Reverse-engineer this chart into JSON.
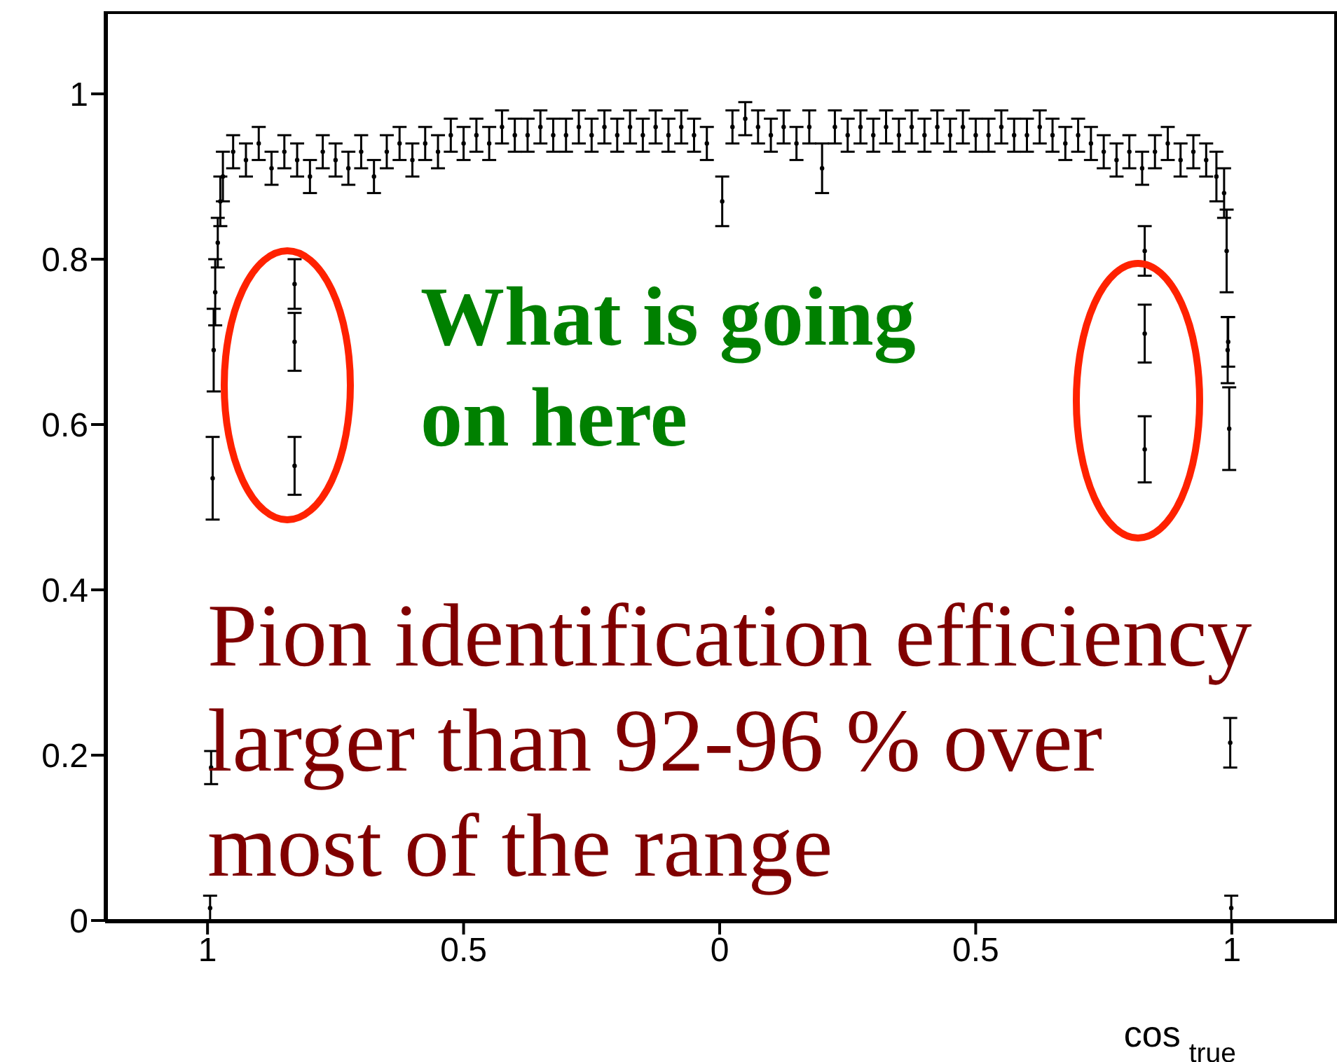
{
  "chart_data": {
    "type": "scatter",
    "xlabel": "cos$_{true}$",
    "xlim": [
      -1.2,
      1.2
    ],
    "ylim": [
      0,
      1.1
    ],
    "xticks": [
      {
        "value": -1,
        "label": "1"
      },
      {
        "value": -0.5,
        "label": "0.5"
      },
      0,
      {
        "value": 0.5,
        "label": "0.5"
      },
      1
    ],
    "yticks": [
      0,
      0.2,
      0.4,
      0.6,
      0.8,
      1
    ],
    "marker": "circle",
    "grid": false,
    "legend": false,
    "annotations": [
      "What is going on here",
      "Pion identification efficiency larger than 92-96 % over most of the range"
    ],
    "series": [
      {
        "color": "#000000",
        "x": [
          -0.995,
          -0.993,
          -0.99,
          -0.988,
          -0.985,
          -0.98,
          -0.975,
          -0.97,
          -0.83,
          -0.83,
          -0.83,
          -0.95,
          -0.925,
          -0.9,
          -0.875,
          -0.85,
          -0.825,
          -0.8,
          -0.775,
          -0.75,
          -0.725,
          -0.7,
          -0.675,
          -0.65,
          -0.625,
          -0.6,
          -0.575,
          -0.55,
          -0.525,
          -0.5,
          -0.475,
          -0.45,
          -0.425,
          -0.4,
          -0.375,
          -0.35,
          -0.325,
          -0.3,
          -0.275,
          -0.25,
          -0.225,
          -0.2,
          -0.175,
          -0.15,
          -0.125,
          -0.1,
          -0.075,
          -0.05,
          -0.025,
          0.005,
          0.025,
          0.05,
          0.075,
          0.1,
          0.125,
          0.15,
          0.175,
          0.2,
          0.225,
          0.25,
          0.275,
          0.3,
          0.325,
          0.35,
          0.375,
          0.4,
          0.425,
          0.45,
          0.475,
          0.5,
          0.525,
          0.55,
          0.575,
          0.6,
          0.625,
          0.65,
          0.675,
          0.7,
          0.725,
          0.75,
          0.775,
          0.8,
          0.825,
          0.85,
          0.875,
          0.9,
          0.925,
          0.95,
          0.97,
          0.83,
          0.83,
          0.83,
          0.985,
          0.99,
          0.992,
          0.993,
          0.995,
          0.997,
          0.999
        ],
        "values": [
          0.015,
          0.185,
          0.535,
          0.69,
          0.76,
          0.82,
          0.87,
          0.9,
          0.77,
          0.7,
          0.55,
          0.93,
          0.92,
          0.94,
          0.91,
          0.93,
          0.92,
          0.9,
          0.93,
          0.92,
          0.91,
          0.93,
          0.9,
          0.93,
          0.94,
          0.92,
          0.94,
          0.93,
          0.95,
          0.94,
          0.95,
          0.94,
          0.96,
          0.95,
          0.95,
          0.96,
          0.95,
          0.95,
          0.96,
          0.95,
          0.96,
          0.95,
          0.96,
          0.95,
          0.96,
          0.95,
          0.96,
          0.95,
          0.94,
          0.87,
          0.96,
          0.97,
          0.96,
          0.95,
          0.96,
          0.94,
          0.96,
          0.91,
          0.96,
          0.95,
          0.96,
          0.95,
          0.96,
          0.95,
          0.96,
          0.95,
          0.96,
          0.95,
          0.96,
          0.95,
          0.95,
          0.96,
          0.95,
          0.95,
          0.96,
          0.95,
          0.94,
          0.95,
          0.94,
          0.93,
          0.92,
          0.93,
          0.91,
          0.93,
          0.94,
          0.92,
          0.93,
          0.92,
          0.9,
          0.81,
          0.71,
          0.57,
          0.88,
          0.81,
          0.69,
          0.7,
          0.595,
          0.215,
          0.015
        ],
        "errors": [
          0.015,
          0.02,
          0.05,
          0.05,
          0.04,
          0.03,
          0.03,
          0.03,
          0.03,
          0.035,
          0.035,
          0.02,
          0.02,
          0.02,
          0.02,
          0.02,
          0.02,
          0.02,
          0.02,
          0.02,
          0.02,
          0.02,
          0.02,
          0.02,
          0.02,
          0.02,
          0.02,
          0.02,
          0.02,
          0.02,
          0.02,
          0.02,
          0.02,
          0.02,
          0.02,
          0.02,
          0.02,
          0.02,
          0.02,
          0.02,
          0.02,
          0.02,
          0.02,
          0.02,
          0.02,
          0.02,
          0.02,
          0.02,
          0.02,
          0.03,
          0.02,
          0.02,
          0.02,
          0.02,
          0.02,
          0.02,
          0.02,
          0.03,
          0.02,
          0.02,
          0.02,
          0.02,
          0.02,
          0.02,
          0.02,
          0.02,
          0.02,
          0.02,
          0.02,
          0.02,
          0.02,
          0.02,
          0.02,
          0.02,
          0.02,
          0.02,
          0.02,
          0.02,
          0.02,
          0.02,
          0.02,
          0.02,
          0.02,
          0.02,
          0.02,
          0.02,
          0.02,
          0.02,
          0.03,
          0.03,
          0.035,
          0.04,
          0.03,
          0.05,
          0.04,
          0.03,
          0.05,
          0.03,
          0.015
        ]
      }
    ]
  }
}
